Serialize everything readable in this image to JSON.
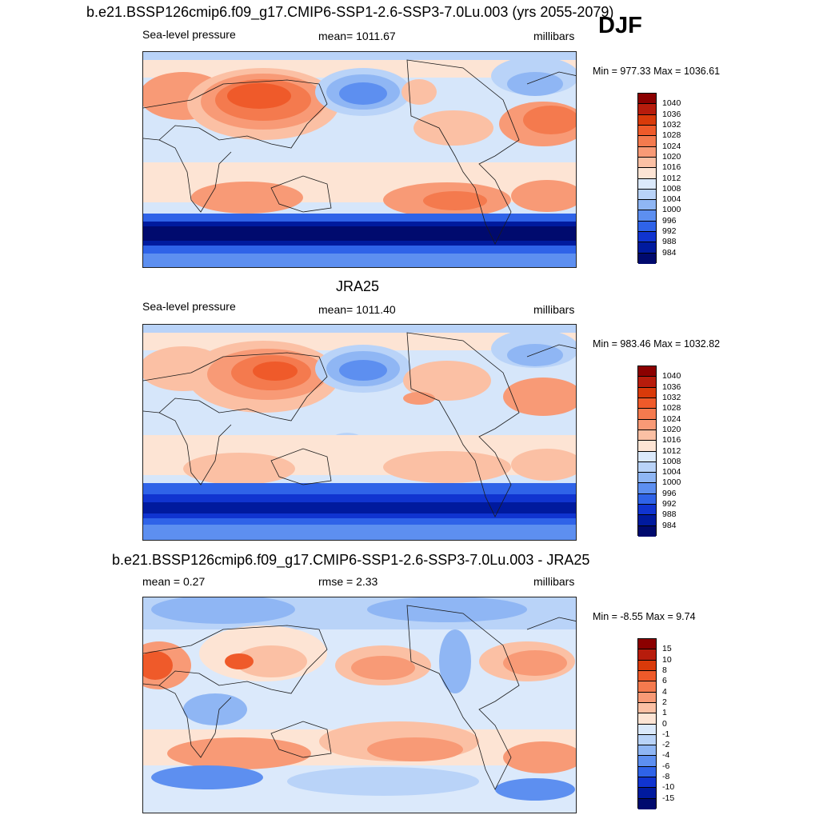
{
  "season": "DJF",
  "panels": [
    {
      "title": "b.e21.BSSP126cmip6.f09_g17.CMIP6-SSP1-2.6-SSP3-7.0Lu.003 (yrs 2055-2079)",
      "left_label": "Sea-level pressure",
      "center_label": "mean= 1011.67",
      "right_label": "millibars",
      "minmax": "Min = 977.33 Max = 1036.61",
      "colorbar": {
        "labels": [
          "1040",
          "1036",
          "1032",
          "1028",
          "1024",
          "1020",
          "1016",
          "1012",
          "1008",
          "1004",
          "1000",
          "996",
          "992",
          "988",
          "984"
        ],
        "colors": [
          "#8b0000",
          "#b71c0c",
          "#d93a0a",
          "#ef5a2a",
          "#f47a4e",
          "#f89a76",
          "#fbc0a4",
          "#fde4d4",
          "#dbe9fb",
          "#b9d3f8",
          "#8fb6f4",
          "#5d8ff0",
          "#2f63e8",
          "#1034d0",
          "#001a9e",
          "#000a6e"
        ]
      }
    },
    {
      "title": "JRA25",
      "left_label": "Sea-level pressure",
      "center_label": "mean= 1011.40",
      "right_label": "millibars",
      "minmax": "Min = 983.46 Max = 1032.82",
      "colorbar": {
        "labels": [
          "1040",
          "1036",
          "1032",
          "1028",
          "1024",
          "1020",
          "1016",
          "1012",
          "1008",
          "1004",
          "1000",
          "996",
          "992",
          "988",
          "984"
        ],
        "colors": [
          "#8b0000",
          "#b71c0c",
          "#d93a0a",
          "#ef5a2a",
          "#f47a4e",
          "#f89a76",
          "#fbc0a4",
          "#fde4d4",
          "#dbe9fb",
          "#b9d3f8",
          "#8fb6f4",
          "#5d8ff0",
          "#2f63e8",
          "#1034d0",
          "#001a9e",
          "#000a6e"
        ]
      }
    },
    {
      "title": "b.e21.BSSP126cmip6.f09_g17.CMIP6-SSP1-2.6-SSP3-7.0Lu.003 - JRA25",
      "left_label": "mean =   0.27",
      "center_label": "rmse =   2.33",
      "right_label": "millibars",
      "minmax": "Min =  -8.55 Max =   9.74",
      "colorbar": {
        "labels": [
          "15",
          "10",
          "8",
          "6",
          "4",
          "2",
          "1",
          "0",
          "-1",
          "-2",
          "-4",
          "-6",
          "-8",
          "-10",
          "-15"
        ],
        "colors": [
          "#8b0000",
          "#b71c0c",
          "#d93a0a",
          "#ef5a2a",
          "#f47a4e",
          "#f89a76",
          "#fbc0a4",
          "#fde4d4",
          "#dbe9fb",
          "#b9d3f8",
          "#8fb6f4",
          "#5d8ff0",
          "#2f63e8",
          "#1034d0",
          "#001a9e",
          "#000a6e"
        ]
      }
    }
  ]
}
